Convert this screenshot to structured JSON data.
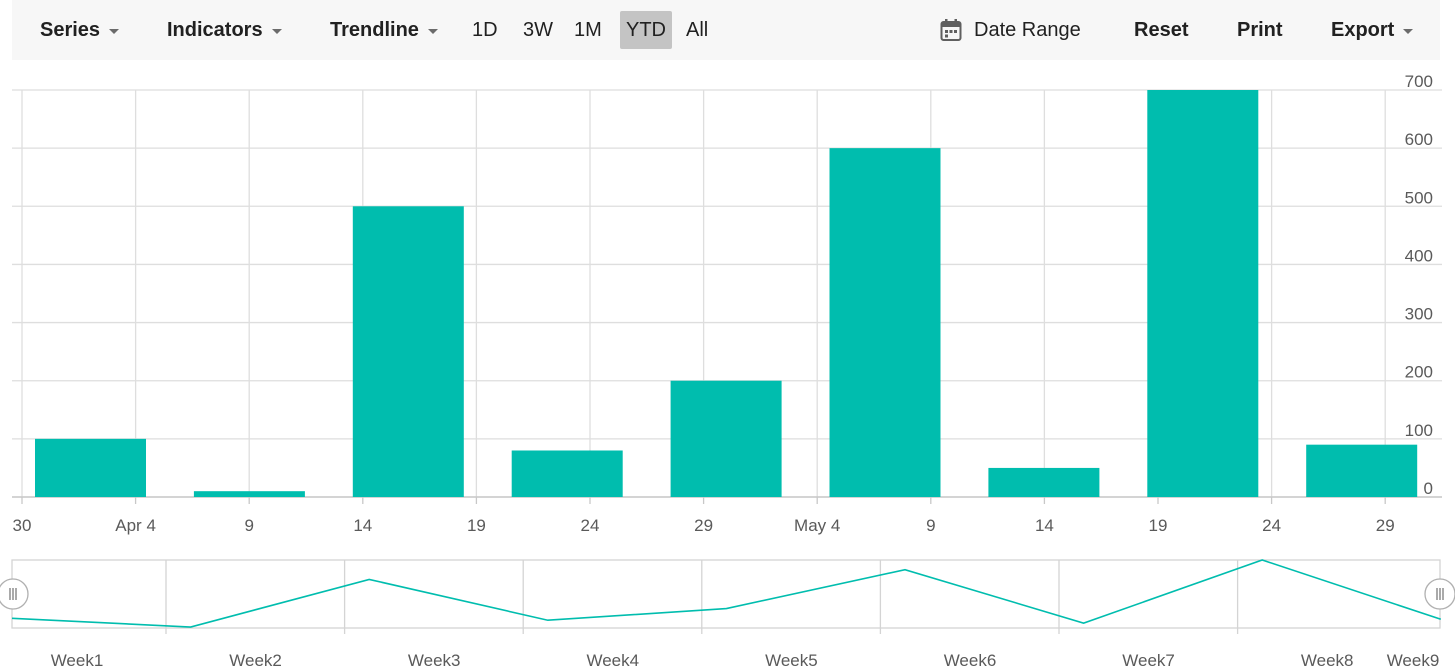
{
  "toolbar": {
    "series": "Series",
    "indicators": "Indicators",
    "trendline": "Trendline",
    "periods": [
      "1D",
      "3W",
      "1M",
      "YTD",
      "All"
    ],
    "selected_period": "YTD",
    "date_range": "Date Range",
    "reset": "Reset",
    "print": "Print",
    "export": "Export"
  },
  "colors": {
    "bar": "#00bdae",
    "navigator_line": "#00bdae",
    "grid": "#dedede",
    "label": "#5a5a5a",
    "selected_period_bg": "#c4c4c4",
    "toolbar_bg": "#f7f7f7"
  },
  "chart_data": {
    "type": "bar",
    "x_tick_labels": [
      "30",
      "Apr 4",
      "9",
      "14",
      "19",
      "24",
      "29",
      "May 4",
      "9",
      "14",
      "19",
      "24",
      "29"
    ],
    "y_ticks": [
      0,
      100,
      200,
      300,
      400,
      500,
      600,
      700
    ],
    "ylim": [
      0,
      700
    ],
    "y_axis_side": "right",
    "values": [
      100,
      10,
      500,
      80,
      200,
      600,
      50,
      700,
      90
    ],
    "grid": true
  },
  "navigator": {
    "labels": [
      "Week1",
      "Week2",
      "Week3",
      "Week4",
      "Week5",
      "Week6",
      "Week7",
      "Week8",
      "Week9"
    ],
    "values": [
      100,
      10,
      500,
      80,
      200,
      600,
      50,
      700,
      90
    ]
  }
}
